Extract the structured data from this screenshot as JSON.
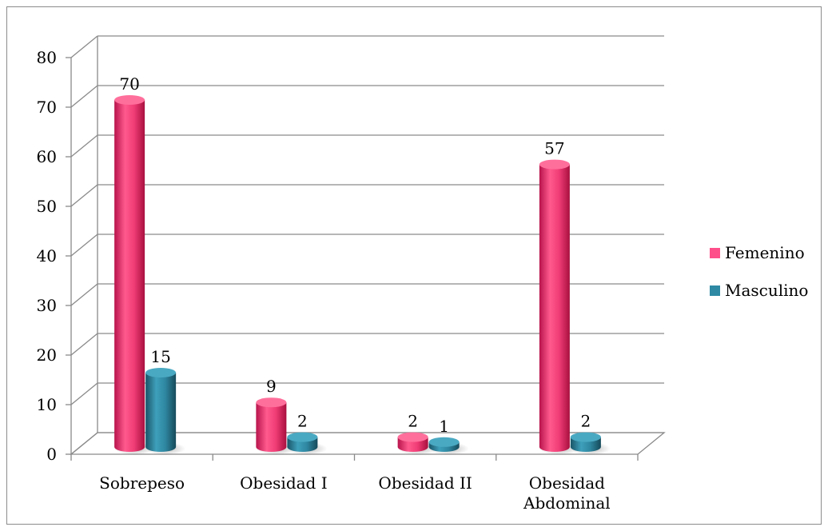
{
  "chart_data": {
    "type": "bar",
    "categories": [
      "Sobrepeso",
      "Obesidad I",
      "Obesidad II",
      "Obesidad Abdominal"
    ],
    "category_lines": [
      [
        "Sobrepeso"
      ],
      [
        "Obesidad I"
      ],
      [
        "Obesidad II"
      ],
      [
        "Obesidad",
        "Abdominal"
      ]
    ],
    "series": [
      {
        "name": "Femenino",
        "values": [
          70,
          9,
          2,
          57
        ],
        "color": "#e8316f"
      },
      {
        "name": "Masculino",
        "values": [
          15,
          2,
          1,
          2
        ],
        "color": "#2d7f96"
      }
    ],
    "ylim": [
      0,
      80
    ],
    "yticks": [
      "0",
      "10",
      "20",
      "30",
      "40",
      "50",
      "60",
      "70",
      "80"
    ],
    "grid": true,
    "legend_position": "right",
    "style": "3d-cylinder"
  }
}
